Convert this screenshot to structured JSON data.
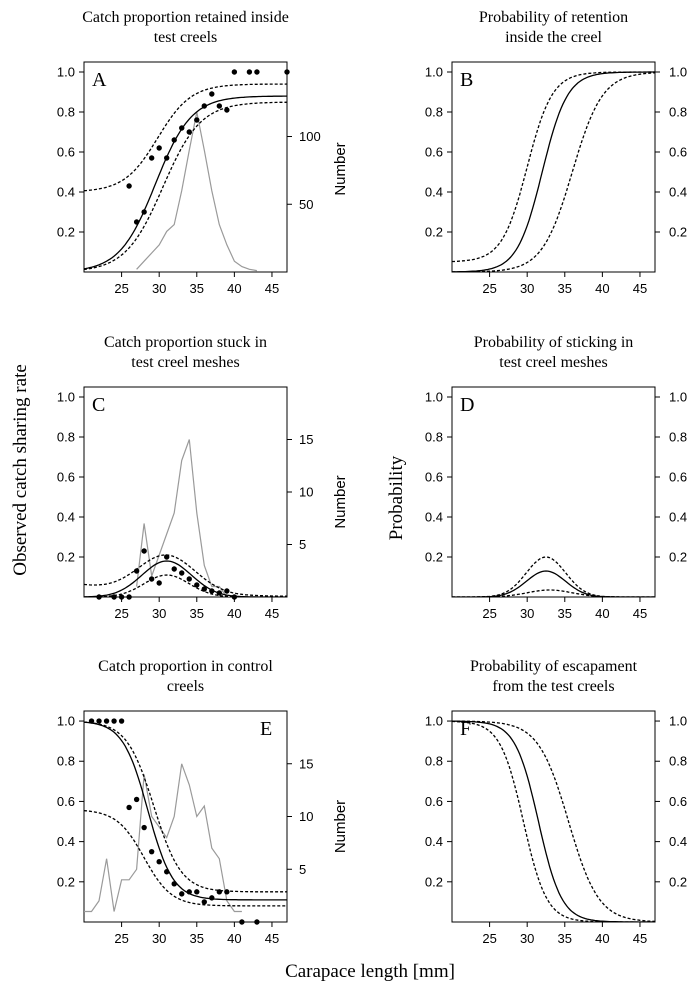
{
  "figure": {
    "xlabel": "Carapace length [mm]",
    "ylabel_left": "Observed catch sharing rate",
    "ylabel_right": "Probability"
  },
  "chart_data": [
    {
      "id": "A",
      "type": "line",
      "title": "Catch proportion retained inside test creels",
      "title_lines": [
        "Catch proportion retained inside",
        "test creels"
      ],
      "panel_letter": "A",
      "xlim": [
        20,
        47
      ],
      "ylim": [
        0,
        1.05
      ],
      "x_ticks": [
        "25",
        "30",
        "35",
        "40",
        "45"
      ],
      "y_ticks_left": [
        "0.2",
        "0.4",
        "0.6",
        "0.8",
        "1.0"
      ],
      "right_axis": {
        "label": "Number",
        "ticks": [
          "50",
          "100"
        ],
        "lim": [
          0,
          155
        ]
      },
      "legend": "none",
      "grid": false,
      "curves": {
        "fit": {
          "kind": "logistic",
          "lower": 0,
          "upper": 0.88,
          "l50": 29.5,
          "slope": 0.42
        },
        "upper_ci": {
          "kind": "logistic",
          "lower": 0.4,
          "upper": 0.94,
          "l50": 29.8,
          "slope": 0.45
        },
        "lower_ci": {
          "kind": "logistic",
          "lower": 0,
          "upper": 0.85,
          "l50": 30.5,
          "slope": 0.4
        }
      },
      "points": [
        {
          "x": 26,
          "y": 0.43
        },
        {
          "x": 27,
          "y": 0.25
        },
        {
          "x": 28,
          "y": 0.3
        },
        {
          "x": 29,
          "y": 0.57
        },
        {
          "x": 30,
          "y": 0.62
        },
        {
          "x": 31,
          "y": 0.57
        },
        {
          "x": 32,
          "y": 0.66
        },
        {
          "x": 33,
          "y": 0.72
        },
        {
          "x": 34,
          "y": 0.7
        },
        {
          "x": 35,
          "y": 0.76
        },
        {
          "x": 36,
          "y": 0.83
        },
        {
          "x": 37,
          "y": 0.89
        },
        {
          "x": 38,
          "y": 0.83
        },
        {
          "x": 39,
          "y": 0.81
        },
        {
          "x": 40,
          "y": 1.0
        },
        {
          "x": 42,
          "y": 1.0
        },
        {
          "x": 43,
          "y": 1.0
        },
        {
          "x": 47,
          "y": 1.0
        }
      ],
      "counts": {
        "x": [
          27,
          28,
          29,
          30,
          31,
          32,
          33,
          34,
          35,
          36,
          37,
          38,
          39,
          40,
          41,
          42,
          43
        ],
        "y": [
          2,
          8,
          14,
          20,
          30,
          35,
          60,
          90,
          118,
          90,
          60,
          35,
          20,
          8,
          4,
          2,
          1
        ]
      }
    },
    {
      "id": "B",
      "type": "line",
      "title": "Probability of retention inside the creel",
      "title_lines": [
        "Probability of retention",
        "inside the creel"
      ],
      "panel_letter": "B",
      "xlim": [
        20,
        47
      ],
      "ylim": [
        0,
        1.05
      ],
      "x_ticks": [
        "25",
        "30",
        "35",
        "40",
        "45"
      ],
      "y_ticks_left": [
        "0.2",
        "0.4",
        "0.6",
        "0.8",
        "1.0"
      ],
      "y_ticks_right": [
        "0.2",
        "0.4",
        "0.6",
        "0.8",
        "1.0"
      ],
      "legend": "none",
      "grid": false,
      "curves": {
        "fit": {
          "kind": "logistic",
          "lower": 0,
          "upper": 1,
          "l50": 32,
          "slope": 0.6
        },
        "upper_ci": {
          "kind": "logistic",
          "lower": 0.05,
          "upper": 1,
          "l50": 30,
          "slope": 0.6
        },
        "lower_ci": {
          "kind": "logistic",
          "lower": 0,
          "upper": 1,
          "l50": 36,
          "slope": 0.5
        }
      }
    },
    {
      "id": "C",
      "type": "line",
      "title": "Catch proportion stuck in test creel meshes",
      "title_lines": [
        "Catch proportion stuck in",
        "test creel meshes"
      ],
      "panel_letter": "C",
      "xlim": [
        20,
        47
      ],
      "ylim": [
        0,
        1.05
      ],
      "x_ticks": [
        "25",
        "30",
        "35",
        "40",
        "45"
      ],
      "y_ticks_left": [
        "0.2",
        "0.4",
        "0.6",
        "0.8",
        "1.0"
      ],
      "right_axis": {
        "label": "Number",
        "ticks": [
          "5",
          "10",
          "15"
        ],
        "lim": [
          0,
          20
        ]
      },
      "legend": "none",
      "grid": false,
      "curves": {
        "fit": {
          "kind": "bell",
          "peak": 0.18,
          "center": 31,
          "sd": 3.3,
          "base": 0
        },
        "upper_ci": {
          "kind": "bell",
          "peak": 0.19,
          "center": 31,
          "sd": 3.8,
          "base": 0.06,
          "base_decay": 10
        },
        "lower_ci": {
          "kind": "bell",
          "peak": 0.11,
          "center": 31,
          "sd": 3.0,
          "base": 0
        }
      },
      "points": [
        {
          "x": 22,
          "y": 0
        },
        {
          "x": 24,
          "y": 0
        },
        {
          "x": 25,
          "y": 0
        },
        {
          "x": 26,
          "y": 0.0
        },
        {
          "x": 27,
          "y": 0.13
        },
        {
          "x": 28,
          "y": 0.23
        },
        {
          "x": 29,
          "y": 0.09
        },
        {
          "x": 30,
          "y": 0.07
        },
        {
          "x": 31,
          "y": 0.2
        },
        {
          "x": 32,
          "y": 0.14
        },
        {
          "x": 33,
          "y": 0.12
        },
        {
          "x": 34,
          "y": 0.09
        },
        {
          "x": 35,
          "y": 0.06
        },
        {
          "x": 36,
          "y": 0.04
        },
        {
          "x": 37,
          "y": 0.03
        },
        {
          "x": 38,
          "y": 0.02
        },
        {
          "x": 39,
          "y": 0.03
        },
        {
          "x": 40,
          "y": 0.0
        }
      ],
      "counts": {
        "x": [
          27,
          28,
          29,
          30,
          31,
          32,
          33,
          34,
          35,
          36,
          37,
          38,
          39,
          40
        ],
        "y": [
          1,
          7,
          2,
          4,
          6,
          8,
          13,
          15,
          8,
          3,
          1,
          1,
          0,
          0
        ]
      }
    },
    {
      "id": "D",
      "type": "line",
      "title": "Probability of sticking in test creel meshes",
      "title_lines": [
        "Probability of sticking in",
        "test creel meshes"
      ],
      "panel_letter": "D",
      "xlim": [
        20,
        47
      ],
      "ylim": [
        0,
        1.05
      ],
      "x_ticks": [
        "25",
        "30",
        "35",
        "40",
        "45"
      ],
      "y_ticks_left": [
        "0.2",
        "0.4",
        "0.6",
        "0.8",
        "1.0"
      ],
      "y_ticks_right": [
        "0.2",
        "0.4",
        "0.6",
        "0.8",
        "1.0"
      ],
      "legend": "none",
      "grid": false,
      "curves": {
        "fit": {
          "kind": "bell",
          "peak": 0.13,
          "center": 32.5,
          "sd": 2.6,
          "base": 0
        },
        "upper_ci": {
          "kind": "bell",
          "peak": 0.2,
          "center": 32.5,
          "sd": 2.6,
          "base": 0
        },
        "lower_ci": {
          "kind": "bell",
          "peak": 0.035,
          "center": 33,
          "sd": 3.0,
          "base": 0
        }
      }
    },
    {
      "id": "E",
      "type": "line",
      "title": "Catch proportion in control creels",
      "title_lines": [
        "Catch proportion in control",
        "creels"
      ],
      "panel_letter": "E",
      "xlim": [
        20,
        47
      ],
      "ylim": [
        0,
        1.05
      ],
      "x_ticks": [
        "25",
        "30",
        "35",
        "40",
        "45"
      ],
      "y_ticks_left": [
        "0.2",
        "0.4",
        "0.6",
        "0.8",
        "1.0"
      ],
      "right_axis": {
        "label": "Number",
        "ticks": [
          "5",
          "10",
          "15"
        ],
        "lim": [
          0,
          20
        ]
      },
      "legend": "none",
      "grid": false,
      "curves": {
        "fit": {
          "kind": "logistic",
          "lower": 0.11,
          "upper": 1.0,
          "l50": 28.5,
          "slope": -0.6
        },
        "upper_ci": {
          "kind": "logistic",
          "lower": 0.15,
          "upper": 1.0,
          "l50": 29.3,
          "slope": -0.55
        },
        "lower_ci": {
          "kind": "logistic",
          "lower": 0.08,
          "upper": 0.56,
          "l50": 28.0,
          "slope": -0.55
        }
      },
      "points": [
        {
          "x": 21,
          "y": 1.0
        },
        {
          "x": 22,
          "y": 1.0
        },
        {
          "x": 23,
          "y": 1.0
        },
        {
          "x": 24,
          "y": 1.0
        },
        {
          "x": 25,
          "y": 1.0
        },
        {
          "x": 26,
          "y": 0.57
        },
        {
          "x": 27,
          "y": 0.61
        },
        {
          "x": 28,
          "y": 0.47
        },
        {
          "x": 29,
          "y": 0.35
        },
        {
          "x": 30,
          "y": 0.3
        },
        {
          "x": 31,
          "y": 0.25
        },
        {
          "x": 32,
          "y": 0.19
        },
        {
          "x": 33,
          "y": 0.14
        },
        {
          "x": 34,
          "y": 0.15
        },
        {
          "x": 35,
          "y": 0.15
        },
        {
          "x": 36,
          "y": 0.1
        },
        {
          "x": 37,
          "y": 0.12
        },
        {
          "x": 38,
          "y": 0.15
        },
        {
          "x": 39,
          "y": 0.15
        },
        {
          "x": 41,
          "y": 0.0
        },
        {
          "x": 43,
          "y": 0.0
        }
      ],
      "counts": {
        "x": [
          20,
          21,
          22,
          23,
          24,
          25,
          26,
          27,
          28,
          29,
          30,
          31,
          32,
          33,
          34,
          35,
          36,
          37,
          38,
          39,
          40,
          41
        ],
        "y": [
          1,
          1,
          2,
          6,
          1,
          4,
          4,
          5,
          14,
          10,
          9,
          8,
          10,
          15,
          13,
          10,
          11,
          7,
          6,
          2,
          1,
          1
        ]
      }
    },
    {
      "id": "F",
      "type": "line",
      "title": "Probability of escapament from the test creels",
      "title_lines": [
        "Probability of escapament",
        "from the test creels"
      ],
      "panel_letter": "F",
      "xlim": [
        20,
        47
      ],
      "ylim": [
        0,
        1.05
      ],
      "x_ticks": [
        "25",
        "30",
        "35",
        "40",
        "45"
      ],
      "y_ticks_left": [
        "0.2",
        "0.4",
        "0.6",
        "0.8",
        "1.0"
      ],
      "y_ticks_right": [
        "0.2",
        "0.4",
        "0.6",
        "0.8",
        "1.0"
      ],
      "legend": "none",
      "grid": false,
      "curves": {
        "fit": {
          "kind": "logistic",
          "lower": 0,
          "upper": 1,
          "l50": 31.5,
          "slope": -0.65
        },
        "upper_ci": {
          "kind": "logistic",
          "lower": 0,
          "upper": 1,
          "l50": 35.5,
          "slope": -0.5
        },
        "lower_ci": {
          "kind": "logistic",
          "lower": 0,
          "upper": 1,
          "l50": 29.5,
          "slope": -0.65
        }
      }
    }
  ]
}
